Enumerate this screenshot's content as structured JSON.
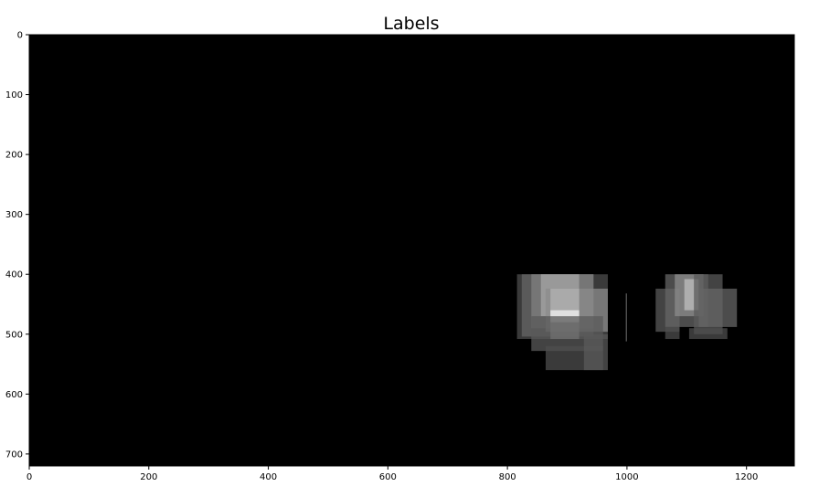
{
  "chart_data": {
    "type": "heatmap",
    "title": "Labels",
    "xlabel": "",
    "ylabel": "",
    "xlim": [
      0,
      1280
    ],
    "ylim": [
      720,
      0
    ],
    "x_ticks": [
      0,
      200,
      400,
      600,
      800,
      1000,
      1200
    ],
    "y_ticks": [
      0,
      100,
      200,
      300,
      400,
      500,
      600,
      700
    ],
    "colormap": "gray",
    "background_color": "#000000",
    "grid": false,
    "boxes": [
      {
        "x0": 816,
        "x1": 968,
        "y0": 400,
        "y1": 508,
        "v": 0.3
      },
      {
        "x0": 824,
        "x1": 944,
        "y0": 400,
        "y1": 504,
        "v": 0.4
      },
      {
        "x0": 840,
        "x1": 944,
        "y0": 400,
        "y1": 490,
        "v": 0.5
      },
      {
        "x0": 856,
        "x1": 920,
        "y0": 400,
        "y1": 470,
        "v": 0.65
      },
      {
        "x0": 864,
        "x1": 968,
        "y0": 424,
        "y1": 496,
        "v": 0.55
      },
      {
        "x0": 872,
        "x1": 920,
        "y0": 424,
        "y1": 508,
        "v": 0.7
      },
      {
        "x0": 872,
        "x1": 920,
        "y0": 460,
        "y1": 480,
        "v": 0.95
      },
      {
        "x0": 840,
        "x1": 960,
        "y0": 470,
        "y1": 528,
        "v": 0.35
      },
      {
        "x0": 864,
        "x1": 960,
        "y0": 520,
        "y1": 560,
        "v": 0.3
      },
      {
        "x0": 928,
        "x1": 968,
        "y0": 500,
        "y1": 560,
        "v": 0.35
      },
      {
        "x0": 998,
        "x1": 1000,
        "y0": 432,
        "y1": 512,
        "v": 0.45
      },
      {
        "x0": 1048,
        "x1": 1088,
        "y0": 424,
        "y1": 496,
        "v": 0.35
      },
      {
        "x0": 1064,
        "x1": 1136,
        "y0": 400,
        "y1": 488,
        "v": 0.4
      },
      {
        "x0": 1080,
        "x1": 1128,
        "y0": 400,
        "y1": 470,
        "v": 0.55
      },
      {
        "x0": 1096,
        "x1": 1120,
        "y0": 408,
        "y1": 460,
        "v": 0.75
      },
      {
        "x0": 1112,
        "x1": 1160,
        "y0": 400,
        "y1": 500,
        "v": 0.35
      },
      {
        "x0": 1120,
        "x1": 1184,
        "y0": 424,
        "y1": 488,
        "v": 0.4
      },
      {
        "x0": 1064,
        "x1": 1088,
        "y0": 488,
        "y1": 508,
        "v": 0.3
      },
      {
        "x0": 1104,
        "x1": 1168,
        "y0": 490,
        "y1": 508,
        "v": 0.3
      }
    ]
  }
}
